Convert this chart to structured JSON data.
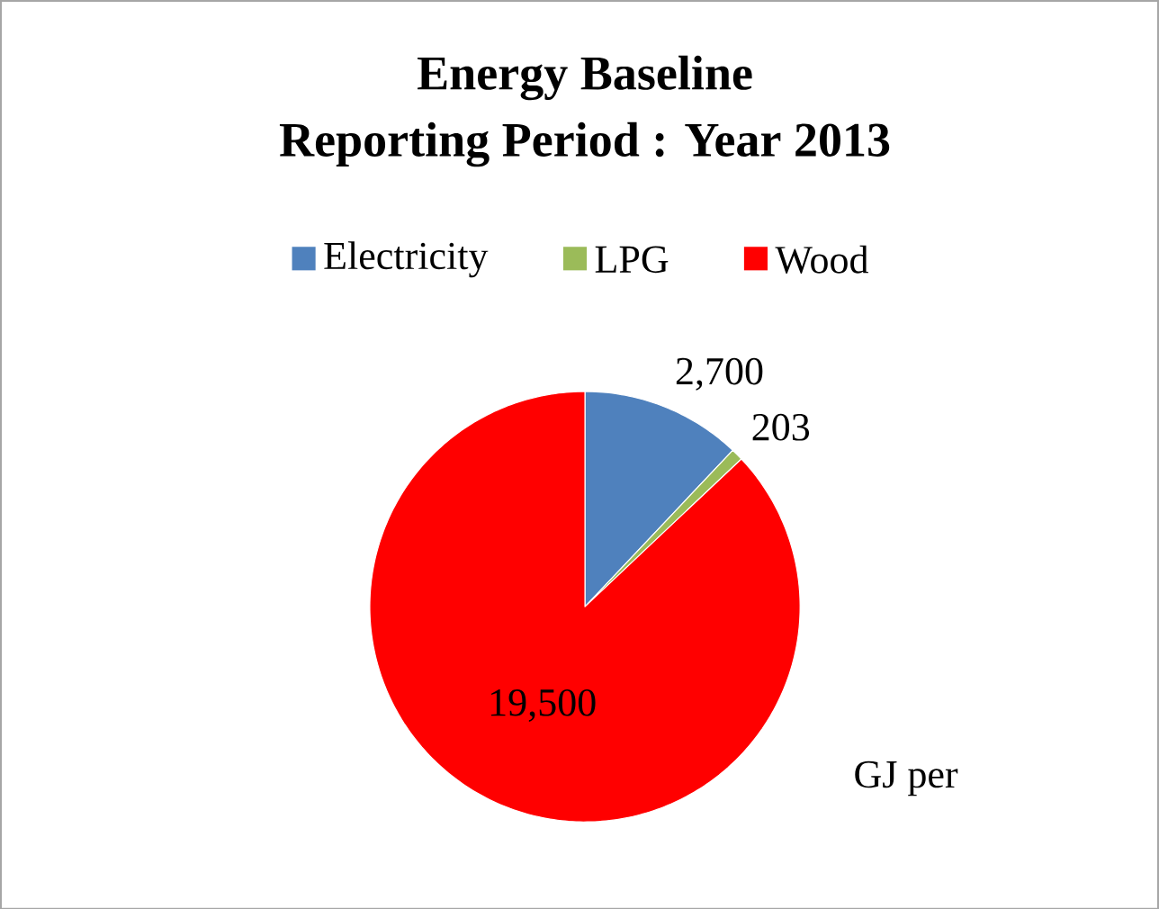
{
  "chart_data": {
    "type": "pie",
    "title": "**Energy Baseline**\n**Reporting Period : Year 2013**",
    "categories": [
      "Electricity",
      "LPG",
      "Wood"
    ],
    "values": [
      2700,
      203,
      19500
    ],
    "colors": [
      "#4f81bd",
      "#9bbb59",
      "#ff0000"
    ],
    "value_labels": [
      "2,700",
      "203",
      "19,500"
    ],
    "legend": "top",
    "annotations": [
      "GJ per"
    ]
  }
}
